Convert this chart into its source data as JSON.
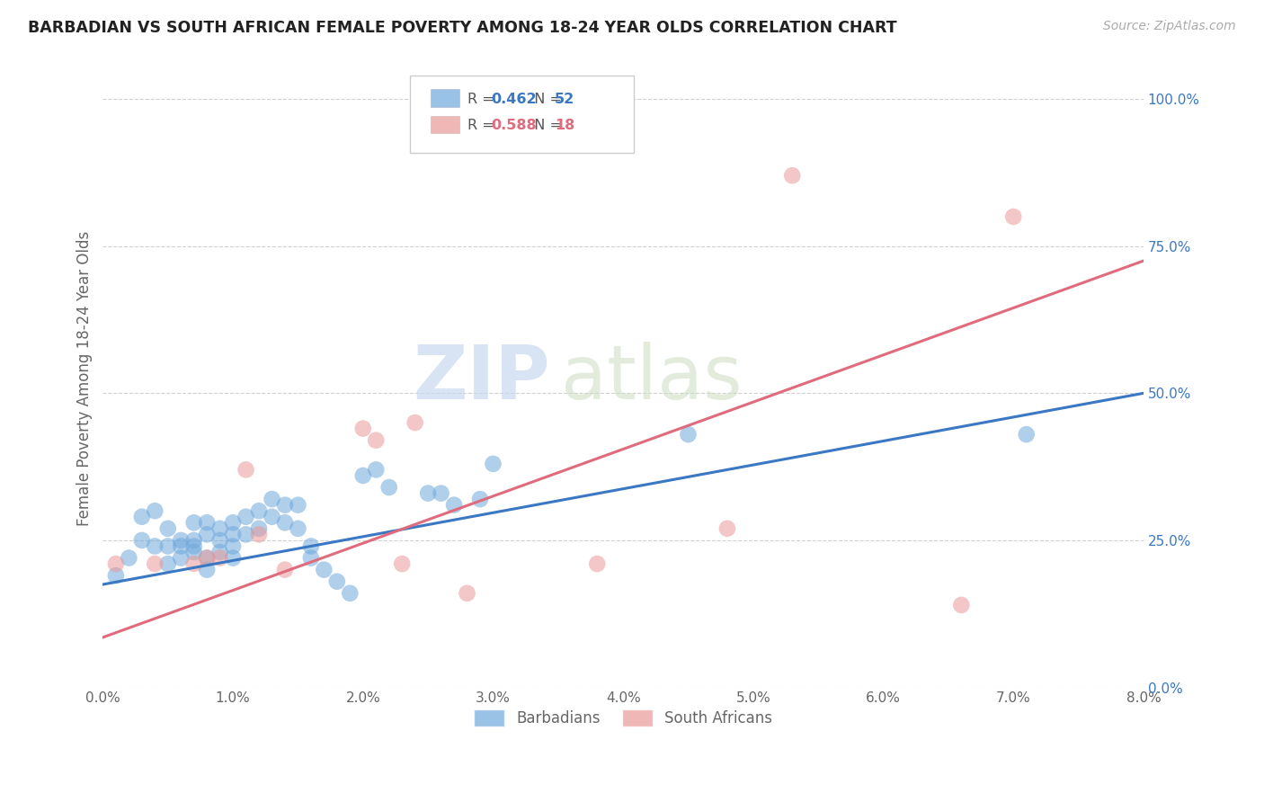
{
  "title": "BARBADIAN VS SOUTH AFRICAN FEMALE POVERTY AMONG 18-24 YEAR OLDS CORRELATION CHART",
  "source": "Source: ZipAtlas.com",
  "ylabel": "Female Poverty Among 18-24 Year Olds",
  "xlim": [
    0.0,
    0.08
  ],
  "ylim": [
    0.0,
    1.05
  ],
  "xticks": [
    0.0,
    0.01,
    0.02,
    0.03,
    0.04,
    0.05,
    0.06,
    0.07,
    0.08
  ],
  "xticklabels": [
    "0.0%",
    "1.0%",
    "2.0%",
    "3.0%",
    "4.0%",
    "5.0%",
    "6.0%",
    "7.0%",
    "8.0%"
  ],
  "yticks": [
    0.0,
    0.25,
    0.5,
    0.75,
    1.0
  ],
  "yticklabels": [
    "0.0%",
    "25.0%",
    "50.0%",
    "75.0%",
    "100.0%"
  ],
  "barbadian_R": 0.462,
  "barbadian_N": 52,
  "sa_R": 0.588,
  "sa_N": 18,
  "barbadian_color": "#6fa8dc",
  "sa_color": "#ea9999",
  "barbadian_line_color": "#3b78c4",
  "sa_line_color": "#e06b7d",
  "legend_label_1": "Barbadians",
  "legend_label_2": "South Africans",
  "watermark_zip": "ZIP",
  "watermark_atlas": "atlas",
  "barbadian_x": [
    0.001,
    0.002,
    0.003,
    0.003,
    0.004,
    0.004,
    0.005,
    0.005,
    0.005,
    0.006,
    0.006,
    0.006,
    0.007,
    0.007,
    0.007,
    0.007,
    0.008,
    0.008,
    0.008,
    0.008,
    0.009,
    0.009,
    0.009,
    0.01,
    0.01,
    0.01,
    0.01,
    0.011,
    0.011,
    0.012,
    0.012,
    0.013,
    0.013,
    0.014,
    0.014,
    0.015,
    0.015,
    0.016,
    0.016,
    0.017,
    0.018,
    0.019,
    0.02,
    0.021,
    0.022,
    0.025,
    0.026,
    0.027,
    0.029,
    0.03,
    0.045,
    0.071
  ],
  "barbadian_y": [
    0.19,
    0.22,
    0.29,
    0.25,
    0.3,
    0.24,
    0.27,
    0.24,
    0.21,
    0.25,
    0.24,
    0.22,
    0.28,
    0.25,
    0.24,
    0.23,
    0.22,
    0.2,
    0.28,
    0.26,
    0.25,
    0.27,
    0.23,
    0.26,
    0.24,
    0.28,
    0.22,
    0.29,
    0.26,
    0.3,
    0.27,
    0.32,
    0.29,
    0.28,
    0.31,
    0.27,
    0.31,
    0.22,
    0.24,
    0.2,
    0.18,
    0.16,
    0.36,
    0.37,
    0.34,
    0.33,
    0.33,
    0.31,
    0.32,
    0.38,
    0.43,
    0.43
  ],
  "sa_x": [
    0.001,
    0.004,
    0.007,
    0.008,
    0.009,
    0.011,
    0.012,
    0.014,
    0.02,
    0.021,
    0.023,
    0.024,
    0.028,
    0.038,
    0.048,
    0.053,
    0.066,
    0.07
  ],
  "sa_y": [
    0.21,
    0.21,
    0.21,
    0.22,
    0.22,
    0.37,
    0.26,
    0.2,
    0.44,
    0.42,
    0.21,
    0.45,
    0.16,
    0.21,
    0.27,
    0.87,
    0.14,
    0.8
  ],
  "blue_line_x0": 0.0,
  "blue_line_y0": 0.175,
  "blue_line_x1": 0.08,
  "blue_line_y1": 0.5,
  "pink_line_x0": 0.0,
  "pink_line_y0": 0.085,
  "pink_line_x1": 0.08,
  "pink_line_y1": 0.725
}
